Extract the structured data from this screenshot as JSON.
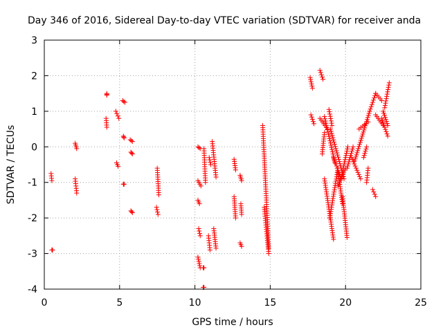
{
  "chart_data": {
    "type": "scatter",
    "title": "Day 346 of 2016, Sidereal Day-to-day VTEC variation (SDTVAR) for receiver anda",
    "xlabel": "GPS time / hours",
    "ylabel": "SDTVAR / TECUs",
    "xlim": [
      0,
      25
    ],
    "ylim": [
      -4,
      3
    ],
    "xticks": [
      "0",
      "5",
      "10",
      "15",
      "20",
      "25"
    ],
    "yticks": [
      "-4",
      "-3",
      "-2",
      "-1",
      "0",
      "1",
      "2",
      "3"
    ],
    "grid": true,
    "marker": "+",
    "color": "#ff0000",
    "segments": [
      [
        0.45,
        -0.75,
        0.5,
        -0.95
      ],
      [
        0.5,
        -2.9,
        0.55,
        -2.9
      ],
      [
        2.05,
        0.1,
        2.15,
        -0.05
      ],
      [
        2.05,
        -0.9,
        2.15,
        -1.3
      ],
      [
        4.15,
        1.5,
        4.15,
        1.45
      ],
      [
        4.1,
        0.8,
        4.15,
        0.55
      ],
      [
        4.75,
        1.0,
        4.95,
        0.8
      ],
      [
        4.8,
        -0.45,
        4.9,
        -0.55
      ],
      [
        5.2,
        1.3,
        5.35,
        1.25
      ],
      [
        5.25,
        0.3,
        5.3,
        0.25
      ],
      [
        5.25,
        -1.05,
        5.3,
        -1.05
      ],
      [
        5.7,
        0.2,
        5.85,
        0.15
      ],
      [
        5.75,
        -0.15,
        5.85,
        -0.2
      ],
      [
        5.75,
        -1.8,
        5.85,
        -1.85
      ],
      [
        7.5,
        -0.6,
        7.6,
        -1.35
      ],
      [
        7.45,
        -1.7,
        7.55,
        -1.9
      ],
      [
        10.2,
        0.0,
        10.35,
        -0.05
      ],
      [
        10.2,
        -0.95,
        10.4,
        -1.1
      ],
      [
        10.2,
        -1.5,
        10.3,
        -1.6
      ],
      [
        10.25,
        -2.3,
        10.35,
        -2.5
      ],
      [
        10.2,
        -3.1,
        10.35,
        -3.4
      ],
      [
        10.55,
        -3.4,
        10.6,
        -3.4
      ],
      [
        10.55,
        -3.95,
        10.6,
        -3.95
      ],
      [
        10.6,
        -0.05,
        10.7,
        -1.0
      ],
      [
        10.9,
        -2.5,
        11.0,
        -2.9
      ],
      [
        10.95,
        -0.3,
        11.05,
        -0.5
      ],
      [
        11.15,
        0.15,
        11.4,
        -0.85
      ],
      [
        11.25,
        -2.3,
        11.4,
        -2.85
      ],
      [
        12.6,
        -0.35,
        12.7,
        -0.65
      ],
      [
        12.6,
        -1.4,
        12.7,
        -2.0
      ],
      [
        13.0,
        -0.8,
        13.1,
        -0.95
      ],
      [
        13.05,
        -1.6,
        13.1,
        -1.9
      ],
      [
        13.0,
        -2.7,
        13.1,
        -2.8
      ],
      [
        14.5,
        0.6,
        14.9,
        -2.85
      ],
      [
        14.6,
        -1.7,
        14.9,
        -3.0
      ],
      [
        17.65,
        1.95,
        17.8,
        1.65
      ],
      [
        17.7,
        0.9,
        17.9,
        0.65
      ],
      [
        18.3,
        2.15,
        18.5,
        1.9
      ],
      [
        18.3,
        0.8,
        18.8,
        0.5
      ],
      [
        18.6,
        0.85,
        19.3,
        -0.45
      ],
      [
        18.45,
        -0.2,
        18.6,
        0.4
      ],
      [
        18.9,
        1.05,
        19.1,
        0.6
      ],
      [
        19.0,
        0.5,
        19.9,
        -0.9
      ],
      [
        19.2,
        -0.3,
        19.7,
        -0.9
      ],
      [
        18.6,
        -0.9,
        19.2,
        -2.6
      ],
      [
        18.95,
        -2.0,
        19.5,
        -0.6
      ],
      [
        19.5,
        -0.7,
        19.8,
        -1.6
      ],
      [
        19.8,
        -1.4,
        20.1,
        -2.55
      ],
      [
        19.5,
        -1.1,
        20.0,
        -0.6
      ],
      [
        19.7,
        -0.9,
        20.15,
        0.0
      ],
      [
        20.1,
        -0.6,
        20.5,
        0.0
      ],
      [
        20.4,
        -0.3,
        21.0,
        -0.9
      ],
      [
        20.6,
        -0.4,
        21.6,
        1.0
      ],
      [
        20.9,
        0.5,
        21.5,
        0.7
      ],
      [
        21.2,
        -0.3,
        21.4,
        0.0
      ],
      [
        21.4,
        -1.0,
        21.5,
        -0.6
      ],
      [
        21.6,
        1.0,
        22.0,
        1.5
      ],
      [
        21.8,
        -1.2,
        22.0,
        -1.4
      ],
      [
        22.0,
        1.5,
        22.4,
        1.3
      ],
      [
        22.0,
        0.9,
        22.5,
        0.6
      ],
      [
        22.4,
        0.8,
        22.8,
        0.3
      ],
      [
        22.6,
        1.1,
        22.9,
        1.8
      ],
      [
        22.5,
        1.0,
        22.8,
        0.6
      ]
    ]
  }
}
